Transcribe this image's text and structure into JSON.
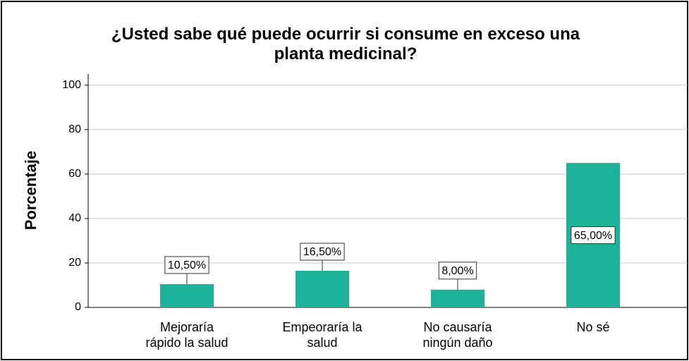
{
  "chart_data": {
    "type": "bar",
    "title": "¿Usted sabe qué puede ocurrir si consume en exceso una\nplanta medicinal?",
    "y_label": "Porcentaje",
    "categories": [
      "Mejoraría\nrápido la salud",
      "Empeoraría la\nsalud",
      "No causaría\nningún daño",
      "No sé"
    ],
    "values": [
      10.5,
      16.5,
      8,
      65
    ],
    "value_labels": [
      "10,50%",
      "16,50%",
      "8,00%",
      "65,00%"
    ],
    "color": "#1db39a",
    "ylim": [
      0,
      105
    ],
    "yticks": [
      0,
      20,
      40,
      60,
      80,
      100
    ],
    "grid": true
  }
}
